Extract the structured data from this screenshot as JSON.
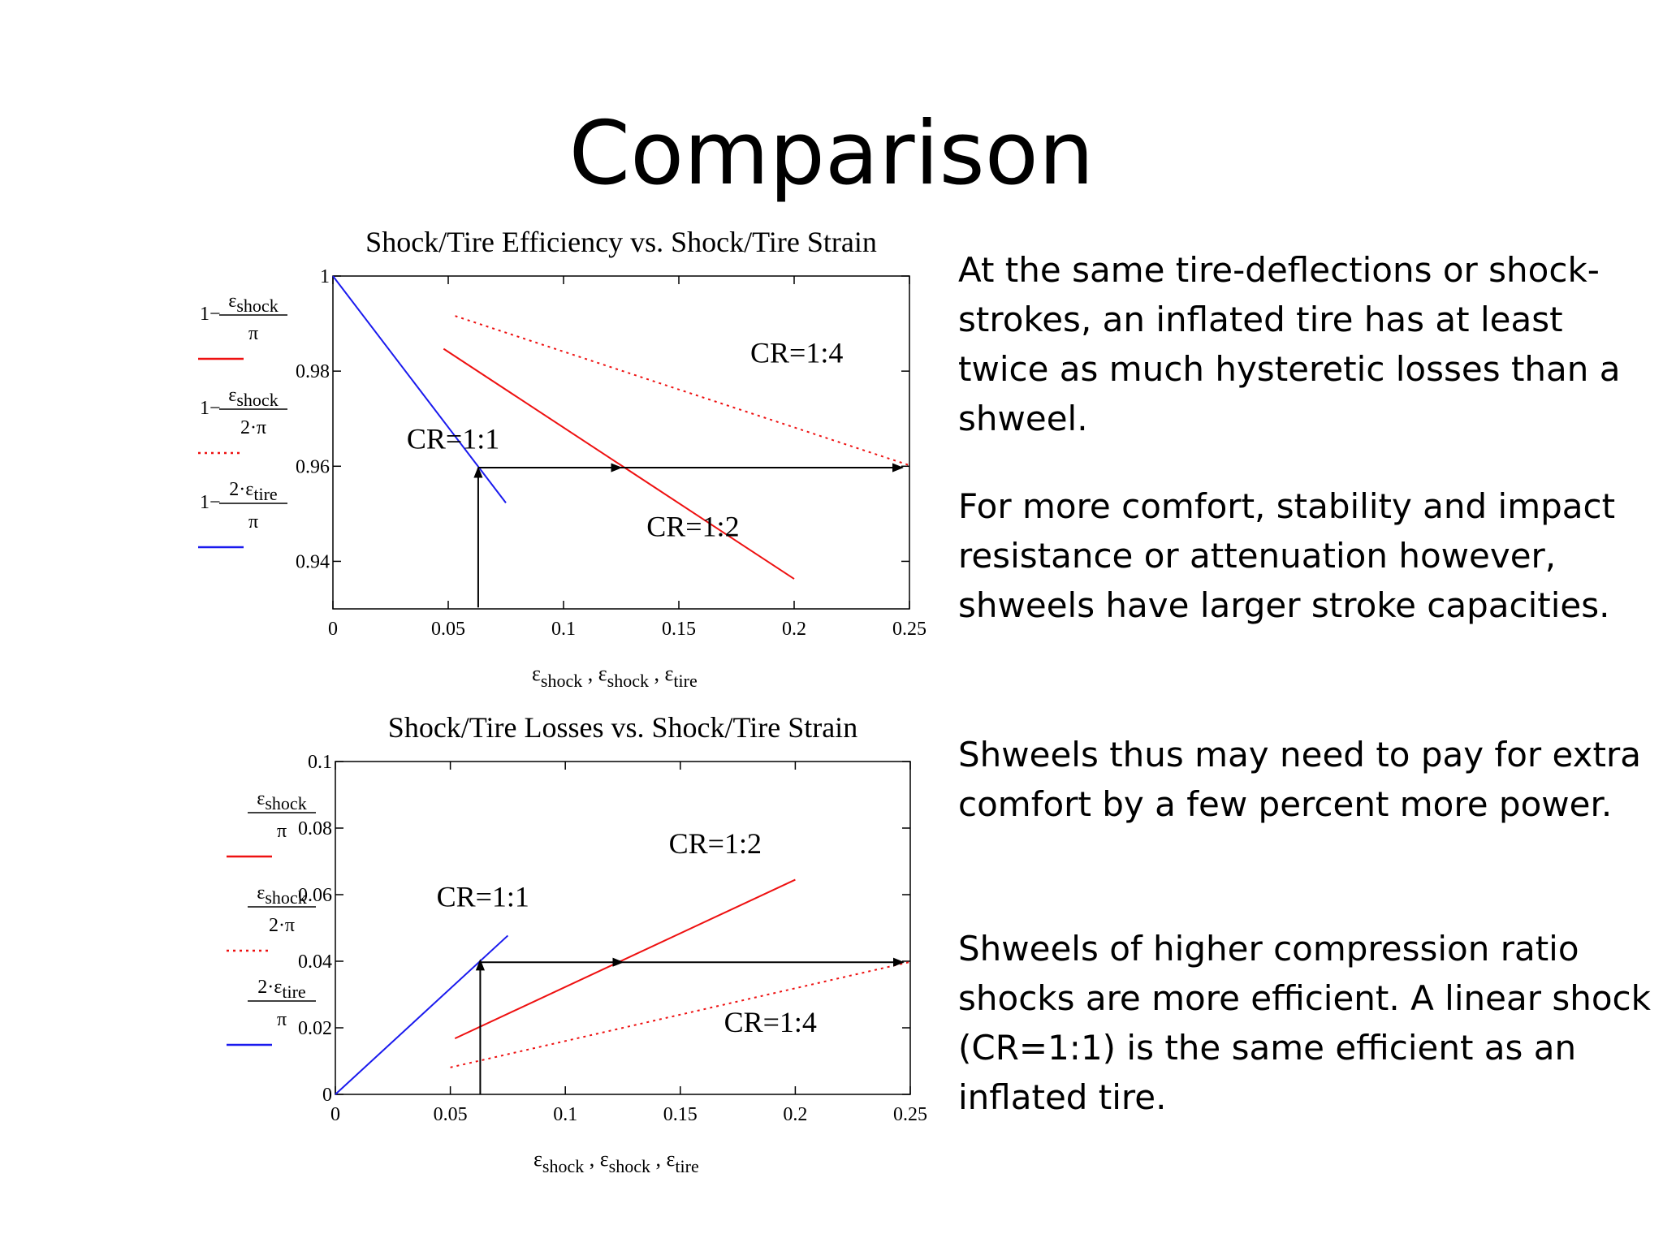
{
  "slide": {
    "title": "Comparison",
    "paragraphs": [
      "At the same tire-deflections or shock-strokes, an inflated tire has at least twice as much hysteretic losses than a shweel.",
      "For more comfort, stability and impact resistance or attenuation however, shweels have larger stroke capacities.",
      "Shweels thus may need to pay for extra comfort by a few percent more power.",
      "Shweels of higher compression ratio shocks are more efficient. A linear shock (CR=1:1) is the same efficient as an inflated tire."
    ]
  },
  "colors": {
    "cr1": "#1a1aee",
    "cr2": "#ee1111",
    "cr4": "#ee1111",
    "arrow": "#000000"
  },
  "chart_data": [
    {
      "type": "line",
      "title": "Shock/Tire Efficiency vs. Shock/Tire Strain",
      "xlabel": {
        "parts": [
          "ε",
          "shock",
          " , ε",
          "shock",
          " , ε",
          "tire"
        ]
      },
      "xlim": [
        0,
        0.25
      ],
      "ylim": [
        0.93,
        1.0
      ],
      "x_ticks": [
        0,
        0.05,
        0.1,
        0.15,
        0.2,
        0.25
      ],
      "x_tick_labels": [
        "0",
        "0.05",
        "0.1",
        "0.15",
        "0.2",
        "0.25"
      ],
      "y_ticks": [
        0.94,
        0.96,
        0.98,
        1.0
      ],
      "y_tick_labels": [
        "0.94",
        "0.96",
        "0.98",
        "1"
      ],
      "legend": [
        {
          "prefix": "1−",
          "num": "ε",
          "num_sub": "shock",
          "den": "π",
          "style": "solid",
          "color": "#ee1111"
        },
        {
          "prefix": "1−",
          "num": "ε",
          "num_sub": "shock",
          "den": "2·π",
          "style": "dotted",
          "color": "#ee1111"
        },
        {
          "prefix": "1−",
          "num": "2·ε",
          "num_sub": "tire",
          "den": "π",
          "style": "solid",
          "color": "#1a1aee"
        }
      ],
      "series": [
        {
          "label": "CR=1:1",
          "style": "solid",
          "color": "#1a1aee",
          "x": [
            0,
            0.075
          ],
          "y": [
            1.0,
            0.9523
          ]
        },
        {
          "label": "CR=1:2",
          "style": "solid",
          "color": "#ee1111",
          "x": [
            0.048,
            0.2
          ],
          "y": [
            0.9847,
            0.9363
          ]
        },
        {
          "label": "CR=1:4",
          "style": "dotted",
          "color": "#ee1111",
          "x": [
            0.053,
            0.25
          ],
          "y": [
            0.9916,
            0.9602
          ]
        }
      ],
      "annotations": [
        {
          "text": "CR=1:1",
          "x": 0.032,
          "y": 0.9637
        },
        {
          "text": "CR=1:2",
          "x": 0.136,
          "y": 0.9453
        },
        {
          "text": "CR=1:4",
          "x": 0.181,
          "y": 0.9818
        }
      ],
      "arrows": [
        {
          "from": [
            0.063,
            0.9303
          ],
          "to": [
            0.063,
            0.9597
          ]
        },
        {
          "from": [
            0.063,
            0.9597
          ],
          "to": [
            0.125,
            0.9597
          ]
        },
        {
          "from": [
            0.125,
            0.9597
          ],
          "to": [
            0.247,
            0.9597
          ]
        }
      ]
    },
    {
      "type": "line",
      "title": "Shock/Tire Losses vs. Shock/Tire Strain",
      "xlabel": {
        "parts": [
          "ε",
          "shock",
          " , ε",
          "shock",
          " , ε",
          "tire"
        ]
      },
      "xlim": [
        0,
        0.25
      ],
      "ylim": [
        0,
        0.1
      ],
      "x_ticks": [
        0,
        0.05,
        0.1,
        0.15,
        0.2,
        0.25
      ],
      "x_tick_labels": [
        "0",
        "0.05",
        "0.1",
        "0.15",
        "0.2",
        "0.25"
      ],
      "y_ticks": [
        0,
        0.02,
        0.04,
        0.06,
        0.08,
        0.1
      ],
      "y_tick_labels": [
        "0",
        "0.02",
        "0.04",
        "0.06",
        "0.08",
        "0.1"
      ],
      "legend": [
        {
          "prefix": "",
          "num": "ε",
          "num_sub": "shock",
          "den": "π",
          "style": "solid",
          "color": "#ee1111"
        },
        {
          "prefix": "",
          "num": "ε",
          "num_sub": "shock",
          "den": "2·π",
          "style": "dotted",
          "color": "#ee1111"
        },
        {
          "prefix": "",
          "num": "2·ε",
          "num_sub": "tire",
          "den": "π",
          "style": "solid",
          "color": "#1a1aee"
        }
      ],
      "series": [
        {
          "label": "CR=1:1",
          "style": "solid",
          "color": "#1a1aee",
          "x": [
            0,
            0.075
          ],
          "y": [
            0,
            0.0477
          ]
        },
        {
          "label": "CR=1:2",
          "style": "solid",
          "color": "#ee1111",
          "x": [
            0.052,
            0.2
          ],
          "y": [
            0.0168,
            0.0645
          ]
        },
        {
          "label": "CR=1:4",
          "style": "dotted",
          "color": "#ee1111",
          "x": [
            0.05,
            0.25
          ],
          "y": [
            0.0081,
            0.0398
          ]
        }
      ],
      "annotations": [
        {
          "text": "CR=1:1",
          "x": 0.044,
          "y": 0.0565
        },
        {
          "text": "CR=1:2",
          "x": 0.145,
          "y": 0.0725
        },
        {
          "text": "CR=1:4",
          "x": 0.169,
          "y": 0.0188
        }
      ],
      "arrows": [
        {
          "from": [
            0.063,
            0.0
          ],
          "to": [
            0.063,
            0.0403
          ]
        },
        {
          "from": [
            0.063,
            0.0397
          ],
          "to": [
            0.125,
            0.0397
          ]
        },
        {
          "from": [
            0.125,
            0.0397
          ],
          "to": [
            0.247,
            0.0397
          ]
        }
      ]
    }
  ]
}
